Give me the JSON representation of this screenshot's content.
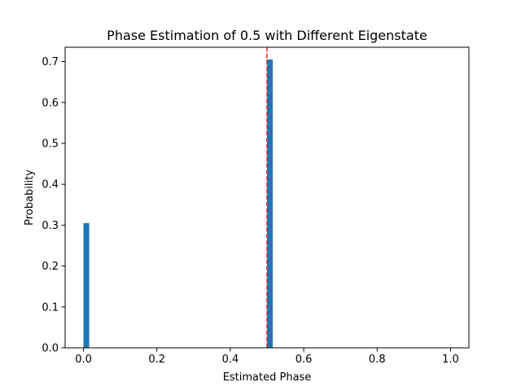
{
  "chart_data": {
    "type": "bar",
    "title": "Phase Estimation of 0.5 with Different Eigenstate",
    "xlabel": "Estimated Phase",
    "ylabel": "Probability",
    "xlim": [
      -0.05,
      1.05
    ],
    "ylim": [
      0,
      0.735
    ],
    "xticks": [
      "0.0",
      "0.2",
      "0.4",
      "0.6",
      "0.8",
      "1.0"
    ],
    "yticks": [
      "0.0",
      "0.1",
      "0.2",
      "0.3",
      "0.4",
      "0.5",
      "0.6",
      "0.7"
    ],
    "bar_width": 0.015625,
    "bars": [
      {
        "x": 0.0078125,
        "value": 0.305
      },
      {
        "x": 0.5078125,
        "value": 0.705
      }
    ],
    "reference_line": {
      "x": 0.5,
      "color": "#d62728",
      "style": "dashed"
    },
    "bar_color": "#1f77b4",
    "grid": false
  }
}
